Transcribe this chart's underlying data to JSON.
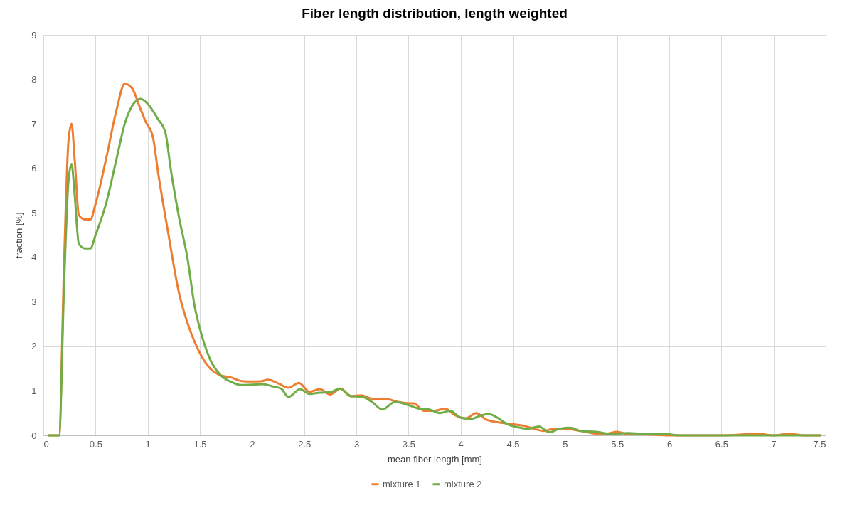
{
  "chart_data": {
    "type": "line",
    "title": "Fiber length distribution, length weighted",
    "xlabel": "mean fiber length [mm]",
    "ylabel": "fraction [%]",
    "xlim": [
      0,
      7.5
    ],
    "xticks": [
      0,
      0.5,
      1,
      1.5,
      2,
      2.5,
      3,
      3.5,
      4,
      4.5,
      5,
      5.5,
      6,
      6.5,
      7,
      7.5
    ],
    "ylim": [
      0,
      9
    ],
    "yticks": [
      0,
      1,
      2,
      3,
      4,
      5,
      6,
      7,
      8,
      9
    ],
    "grid": true,
    "legend": "bottom",
    "marker": "none",
    "line_style": "solid",
    "series": [
      {
        "name": "mixture 1",
        "color": "#ed7d31",
        "x": [
          0.05,
          0.1,
          0.15,
          0.2,
          0.24,
          0.27,
          0.3,
          0.34,
          0.4,
          0.45,
          0.5,
          0.6,
          0.7,
          0.78,
          0.85,
          0.92,
          0.98,
          1.05,
          1.1,
          1.2,
          1.3,
          1.4,
          1.5,
          1.6,
          1.7,
          1.8,
          1.9,
          2.0,
          2.1,
          2.15,
          2.25,
          2.35,
          2.45,
          2.55,
          2.65,
          2.75,
          2.85,
          2.95,
          3.05,
          3.15,
          3.3,
          3.4,
          3.5,
          3.55,
          3.65,
          3.75,
          3.85,
          3.95,
          4.05,
          4.15,
          4.25,
          4.4,
          4.5,
          4.6,
          4.7,
          4.8,
          4.9,
          5.0,
          5.1,
          5.2,
          5.3,
          5.4,
          5.5,
          5.6,
          5.8,
          6.0,
          6.5,
          6.85,
          7.0,
          7.15,
          7.3,
          7.45
        ],
        "values": [
          0,
          0,
          0,
          4.0,
          6.6,
          7.0,
          6.2,
          4.95,
          4.85,
          4.85,
          5.2,
          6.2,
          7.3,
          7.9,
          7.8,
          7.4,
          7.05,
          6.7,
          5.9,
          4.5,
          3.2,
          2.4,
          1.85,
          1.5,
          1.35,
          1.3,
          1.22,
          1.21,
          1.22,
          1.25,
          1.17,
          1.07,
          1.18,
          0.98,
          1.04,
          0.92,
          1.05,
          0.88,
          0.9,
          0.82,
          0.81,
          0.75,
          0.72,
          0.72,
          0.55,
          0.55,
          0.6,
          0.45,
          0.38,
          0.5,
          0.35,
          0.28,
          0.25,
          0.22,
          0.15,
          0.1,
          0.15,
          0.15,
          0.12,
          0.08,
          0.04,
          0.04,
          0.08,
          0.03,
          0.02,
          0,
          0,
          0.03,
          0,
          0.03,
          0,
          0
        ]
      },
      {
        "name": "mixture 2",
        "color": "#70ad47",
        "x": [
          0.05,
          0.1,
          0.15,
          0.2,
          0.24,
          0.27,
          0.3,
          0.34,
          0.4,
          0.45,
          0.5,
          0.6,
          0.7,
          0.78,
          0.85,
          0.93,
          1.0,
          1.1,
          1.17,
          1.22,
          1.3,
          1.38,
          1.45,
          1.5,
          1.6,
          1.7,
          1.8,
          1.9,
          2.0,
          2.1,
          2.2,
          2.28,
          2.35,
          2.46,
          2.55,
          2.65,
          2.75,
          2.84,
          2.95,
          3.05,
          3.15,
          3.25,
          3.37,
          3.5,
          3.6,
          3.7,
          3.8,
          3.9,
          4.0,
          4.1,
          4.2,
          4.27,
          4.35,
          4.45,
          4.55,
          4.65,
          4.75,
          4.85,
          4.95,
          5.05,
          5.15,
          5.3,
          5.45,
          5.6,
          5.8,
          5.95,
          6.1,
          6.5,
          7.0,
          7.45
        ],
        "values": [
          0,
          0,
          0,
          3.5,
          5.7,
          6.1,
          5.4,
          4.3,
          4.2,
          4.2,
          4.5,
          5.2,
          6.2,
          7.0,
          7.4,
          7.56,
          7.45,
          7.1,
          6.8,
          6.0,
          4.9,
          4.0,
          2.9,
          2.4,
          1.7,
          1.35,
          1.2,
          1.13,
          1.14,
          1.15,
          1.1,
          1.05,
          0.86,
          1.04,
          0.93,
          0.96,
          0.97,
          1.05,
          0.88,
          0.87,
          0.75,
          0.58,
          0.75,
          0.68,
          0.6,
          0.58,
          0.5,
          0.55,
          0.4,
          0.37,
          0.45,
          0.48,
          0.4,
          0.25,
          0.18,
          0.15,
          0.2,
          0.07,
          0.15,
          0.17,
          0.1,
          0.08,
          0.03,
          0.05,
          0.03,
          0.03,
          0,
          0,
          0,
          0
        ]
      }
    ]
  }
}
